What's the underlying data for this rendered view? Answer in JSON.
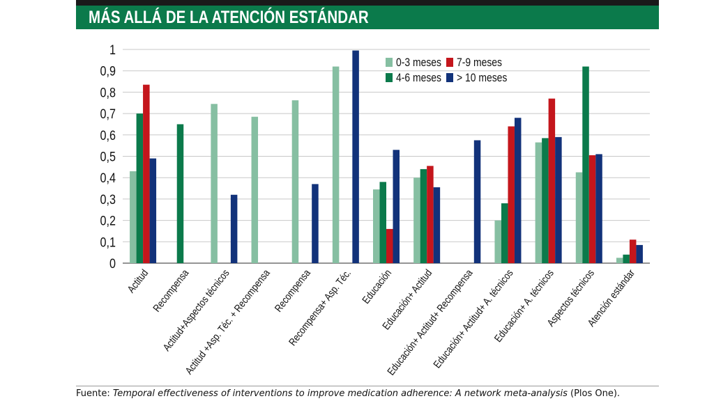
{
  "header": {
    "title": "MÁS ALLÁ DE LA ATENCIÓN ESTÁNDAR"
  },
  "source": {
    "prefix": "Fuente: ",
    "title": "Temporal effectiveness of interventions to improve medication adherence: A network meta-analysis",
    "suffix": " (Plos One)."
  },
  "colors": {
    "header_bg": "#0b7a4b",
    "s0_3": "#86bfa2",
    "s4_6": "#0b7a4b",
    "s7_9": "#c4161c",
    "s10": "#12327a"
  },
  "chart_data": {
    "type": "bar",
    "title": "",
    "xlabel": "",
    "ylabel": "",
    "ylim": [
      0,
      1
    ],
    "yticks": [
      "0",
      "0,1",
      "0,2",
      "0,3",
      "0,4",
      "0,5",
      "0,6",
      "0,7",
      "0,8",
      "0,9",
      "1"
    ],
    "grid": true,
    "legend_position": "top-right",
    "categories": [
      "Actitud",
      "Recompensa",
      "Actitud+Aspectos técnicos",
      "Actitud +Asp. Téc. + Recompensa",
      "Recompensa",
      "Recompensa+ Asp. Téc.",
      "Educación",
      "Educación+ Actitud",
      "Educación+ Actitud+ Recompensa",
      "Educación+ Actitud+ A. técnicos",
      "Educación+ A. técnicos",
      "Aspectos técnicos",
      "Atención  estándar"
    ],
    "series": [
      {
        "name": "0-3 meses",
        "color": "#86bfa2",
        "values": [
          0.43,
          null,
          0.745,
          0.685,
          0.762,
          0.92,
          0.345,
          0.4,
          null,
          0.2,
          0.565,
          0.425,
          0.025
        ]
      },
      {
        "name": "4-6 meses",
        "color": "#0b7a4b",
        "values": [
          0.7,
          0.65,
          null,
          null,
          null,
          null,
          0.38,
          0.44,
          null,
          0.28,
          0.585,
          0.92,
          0.04
        ]
      },
      {
        "name": "7-9 meses",
        "color": "#c4161c",
        "values": [
          0.835,
          null,
          null,
          null,
          null,
          null,
          0.16,
          0.455,
          null,
          0.64,
          0.77,
          0.505,
          0.11
        ]
      },
      {
        "name": "> 10 meses",
        "color": "#12327a",
        "values": [
          0.49,
          null,
          0.32,
          null,
          0.37,
          0.995,
          0.53,
          0.355,
          0.575,
          0.68,
          0.59,
          0.51,
          0.085
        ]
      }
    ]
  }
}
